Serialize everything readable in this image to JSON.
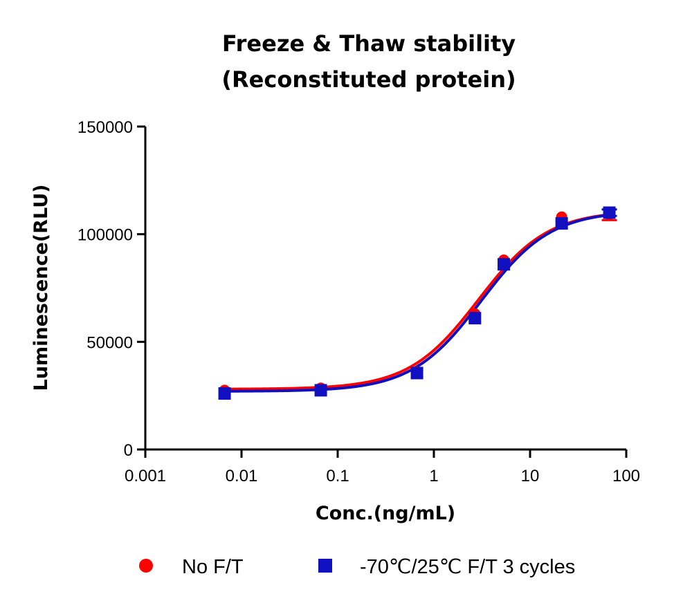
{
  "chart_data": {
    "type": "scatter",
    "title_line1": "Freeze & Thaw stability",
    "title_line2": "(Reconstituted protein)",
    "xlabel": "Conc.(ng/mL)",
    "ylabel": "Luminescence(RLU)",
    "xscale": "log",
    "xlim": [
      0.001,
      100
    ],
    "ylim": [
      0,
      150000
    ],
    "x_ticks": [
      0.001,
      0.01,
      0.1,
      1,
      10,
      100
    ],
    "x_tick_labels": [
      "0.001",
      "0.01",
      "0.1",
      "1",
      "10",
      "100"
    ],
    "y_ticks": [
      0,
      50000,
      100000,
      150000
    ],
    "y_tick_labels": [
      "0",
      "50000",
      "100000",
      "150000"
    ],
    "grid": false,
    "legend_position": "bottom",
    "series": [
      {
        "name": "No F/T",
        "marker": "circle",
        "color": "#ff0000",
        "x": [
          0.00667,
          0.0667,
          0.667,
          2.67,
          5.33,
          21.3,
          66.7
        ],
        "y": [
          27500,
          28500,
          36000,
          63000,
          88000,
          108000,
          109000
        ],
        "err": [
          0,
          0,
          0,
          0,
          0,
          0,
          2500
        ],
        "fit": {
          "bottom": 28000,
          "top": 111000,
          "ec50": 2.9,
          "hill": 1.2
        }
      },
      {
        "name": "-70℃/25℃ F/T 3 cycles",
        "marker": "square",
        "color": "#1010c0",
        "x": [
          0.00667,
          0.0667,
          0.667,
          2.67,
          5.33,
          21.3,
          66.7
        ],
        "y": [
          26000,
          27500,
          35500,
          61000,
          86000,
          105000,
          110000
        ],
        "err": [
          0,
          0,
          0,
          0,
          0,
          0,
          1500
        ],
        "fit": {
          "bottom": 27000,
          "top": 111000,
          "ec50": 3.1,
          "hill": 1.2
        }
      }
    ]
  }
}
